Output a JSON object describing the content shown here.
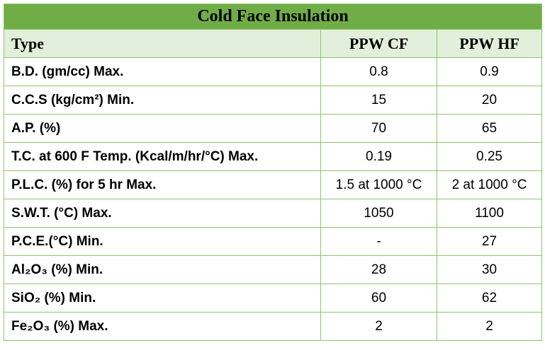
{
  "table": {
    "title": "Cold Face Insulation",
    "header": [
      "Type",
      "PPW CF",
      "PPW HF"
    ],
    "rows": [
      [
        "B.D. (gm/cc) Max.",
        "0.8",
        "0.9"
      ],
      [
        "C.C.S (kg/cm²) Min.",
        "15",
        "20"
      ],
      [
        "A.P. (%)",
        "70",
        "65"
      ],
      [
        "T.C. at 600 F Temp. (Kcal/m/hr/°C) Max.",
        "0.19",
        "0.25"
      ],
      [
        "P.L.C. (%) for 5 hr Max.",
        "1.5 at 1000 °C",
        "2 at 1000 °C"
      ],
      [
        "S.W.T. (°C) Max.",
        "1050",
        "1100"
      ],
      [
        "P.C.E.(°C) Min.",
        "-",
        "27"
      ],
      [
        "Al₂O₃ (%) Min.",
        "28",
        "30"
      ],
      [
        "SiO₂ (%) Min.",
        "60",
        "62"
      ],
      [
        "Fe₂O₃ (%) Max.",
        "2",
        "2"
      ]
    ]
  }
}
